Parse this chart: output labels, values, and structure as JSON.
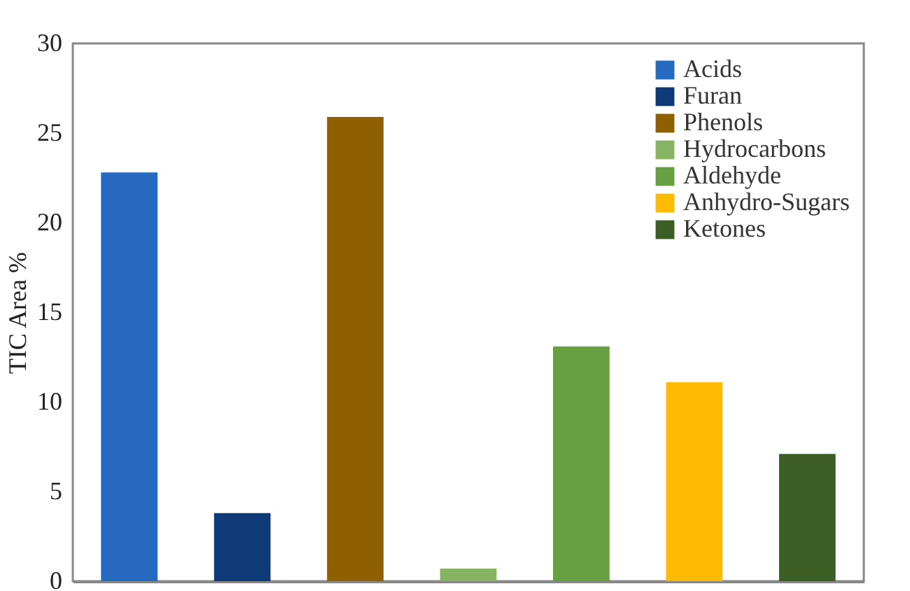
{
  "chart_data": {
    "type": "bar",
    "ylabel": "TIC Area %",
    "categories": [
      null
    ],
    "series": [
      {
        "name": "Acids",
        "color": "#2569c0",
        "values": [
          22.8
        ]
      },
      {
        "name": "Furan",
        "color": "#0f3a78",
        "values": [
          3.8
        ]
      },
      {
        "name": "Phenols",
        "color": "#8f6000",
        "values": [
          25.9
        ]
      },
      {
        "name": "Hydrocarbons",
        "color": "#86b462",
        "values": [
          0.7
        ]
      },
      {
        "name": "Aldehyde",
        "color": "#66a040",
        "values": [
          13.1
        ]
      },
      {
        "name": "Anhydro-Sugars",
        "color": "#fdbb00",
        "values": [
          11.1
        ]
      },
      {
        "name": "Ketones",
        "color": "#3a5e24",
        "values": [
          7.1
        ]
      }
    ],
    "ylim": [
      0,
      30
    ],
    "yticks": [
      0,
      5,
      10,
      15,
      20,
      25,
      30
    ],
    "tick_labels": "y",
    "legend": "top right"
  }
}
